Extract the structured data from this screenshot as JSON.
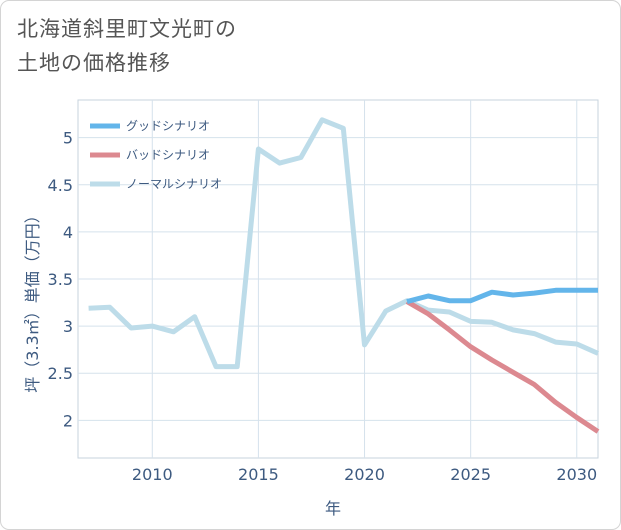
{
  "title": {
    "line1": "北海道斜里町文光町の",
    "line2": "土地の価格推移"
  },
  "chart_data": {
    "type": "line",
    "xlabel": "年",
    "ylabel": "坪（3.3㎡）単価（万円）",
    "xlim": [
      2006.5,
      2031
    ],
    "ylim": [
      1.6,
      5.4
    ],
    "x_ticks": [
      2010,
      2015,
      2020,
      2025,
      2030
    ],
    "y_ticks": [
      2,
      2.5,
      3,
      3.5,
      4,
      4.5,
      5
    ],
    "x_tick_labels": [
      "2010",
      "2015",
      "2020",
      "2025",
      "2030"
    ],
    "y_tick_labels": [
      "2",
      "2.5",
      "3",
      "3.5",
      "4",
      "4.5",
      "5"
    ],
    "grid": true,
    "legend_position": "top-left",
    "series": [
      {
        "name": "グッドシナリオ",
        "color": "#63b5ea",
        "x": [
          2022,
          2023,
          2024,
          2025,
          2026,
          2027,
          2028,
          2029,
          2030,
          2031
        ],
        "values": [
          3.26,
          3.32,
          3.27,
          3.27,
          3.36,
          3.33,
          3.35,
          3.38,
          3.38,
          3.38
        ]
      },
      {
        "name": "バッドシナリオ",
        "color": "#dc8990",
        "x": [
          2022,
          2023,
          2024,
          2025,
          2026,
          2027,
          2028,
          2029,
          2030,
          2031
        ],
        "values": [
          3.26,
          3.13,
          2.96,
          2.78,
          2.64,
          2.51,
          2.38,
          2.19,
          2.03,
          1.88
        ]
      },
      {
        "name": "ノーマルシナリオ",
        "color": "#bddce9",
        "x": [
          2007,
          2008,
          2009,
          2010,
          2011,
          2012,
          2013,
          2014,
          2015,
          2016,
          2017,
          2018,
          2019,
          2020,
          2021,
          2022,
          2023,
          2024,
          2025,
          2026,
          2027,
          2028,
          2029,
          2030,
          2031
        ],
        "values": [
          3.19,
          3.2,
          2.98,
          3.0,
          2.94,
          3.1,
          2.57,
          2.57,
          4.88,
          4.73,
          4.79,
          5.19,
          5.1,
          2.8,
          3.16,
          3.27,
          3.17,
          3.15,
          3.05,
          3.04,
          2.96,
          2.92,
          2.83,
          2.81,
          2.71
        ]
      }
    ]
  }
}
